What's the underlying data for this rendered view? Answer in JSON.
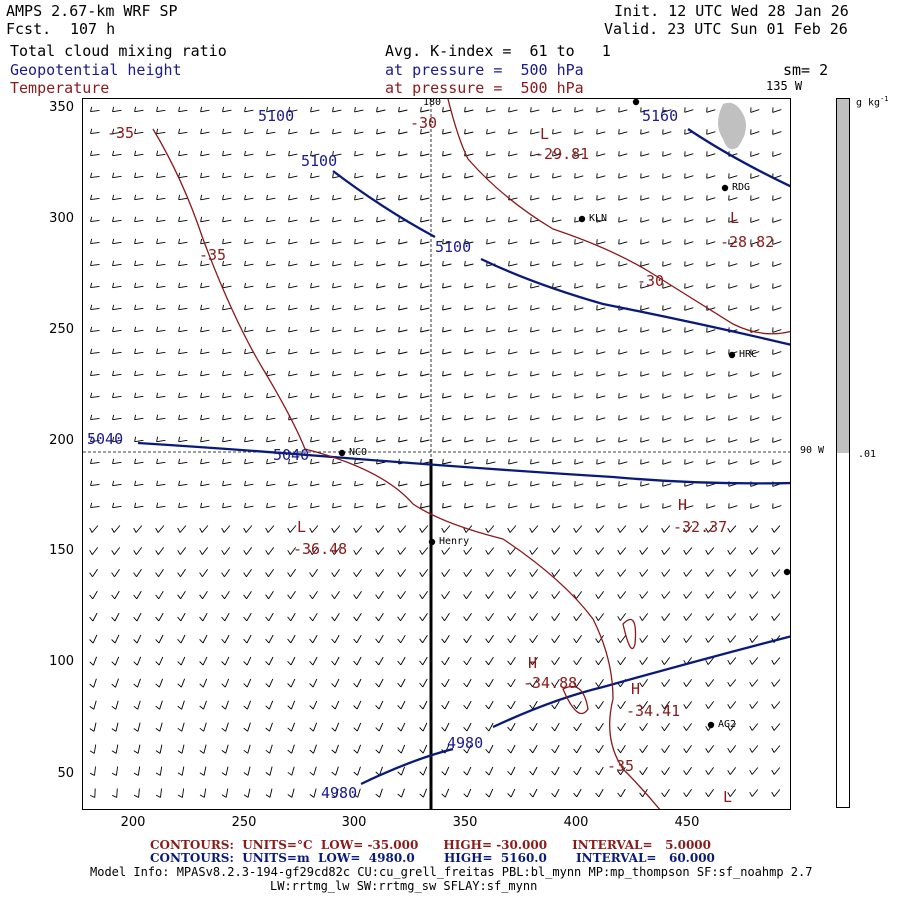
{
  "header": {
    "model": "AMPS 2.67-km WRF SP",
    "fcst_label": "Fcst.",
    "fcst_value": "107 h",
    "init": "Init. 12 UTC Wed 28 Jan 26",
    "valid": "Valid. 23 UTC Sun 01 Feb 26",
    "field1": "Total cloud mixing ratio",
    "field2": "Geopotential height",
    "field3": "Temperature",
    "avg": "Avg. K-index =  61 to   1",
    "pressure2": "at pressure =  500 hPa",
    "pressure3": "at pressure =  500 hPa",
    "smoothing": "sm= 2"
  },
  "map": {
    "lon_135": "135 W",
    "lon_90": "90 W",
    "lon_180": "180",
    "stations": [
      {
        "name": "RDG"
      },
      {
        "name": "KLN"
      },
      {
        "name": "HRC"
      },
      {
        "name": "NCO"
      },
      {
        "name": "Henry"
      },
      {
        "name": "AG2"
      }
    ],
    "height_labels": [
      "5100",
      "5100",
      "5100",
      "5160",
      "5040",
      "5040",
      "4980",
      "4980"
    ],
    "temp_labels": [
      "-35",
      "-35",
      "-30",
      "-30",
      "-35"
    ],
    "extrema": [
      {
        "type": "L",
        "value": "-29.81"
      },
      {
        "type": "L",
        "value": "-28.82"
      },
      {
        "type": "H",
        "value": "-32.37"
      },
      {
        "type": "L",
        "value": "-36.48"
      },
      {
        "type": "H",
        "value": "-34.88"
      },
      {
        "type": "H",
        "value": "-34.41"
      },
      {
        "type": "L",
        "value": ""
      }
    ]
  },
  "axes": {
    "x_ticks": [
      "200",
      "250",
      "300",
      "350",
      "400",
      "450"
    ],
    "y_ticks": [
      "350",
      "300",
      "250",
      "200",
      "150",
      "100",
      "50"
    ]
  },
  "colorbar": {
    "units": "g kg",
    "units_exp": "-1",
    "threshold": ".01"
  },
  "footer": {
    "red_contours": "CONTOURS:  UNITS=°C  LOW= -35.000      HIGH= -30.000      INTERVAL=   5.0000",
    "blue_contours": "CONTOURS:  UNITS=m  LOW=  4980.0       HIGH=  5160.0       INTERVAL=   60.000",
    "model_info1": "Model Info: MPASv8.2.3-194-gf29cd82c CU:cu_grell_freitas PBL:bl_mynn MP:mp_thompson SF:sf_noahmp 2.7",
    "model_info2": "LW:rrtmg_lw SW:rrtmg_sw SFLAY:sf_mynn"
  },
  "colors": {
    "height": "#0a1a7a",
    "temperature": "#8b1a1a",
    "cloud": "#c0c0c0"
  }
}
